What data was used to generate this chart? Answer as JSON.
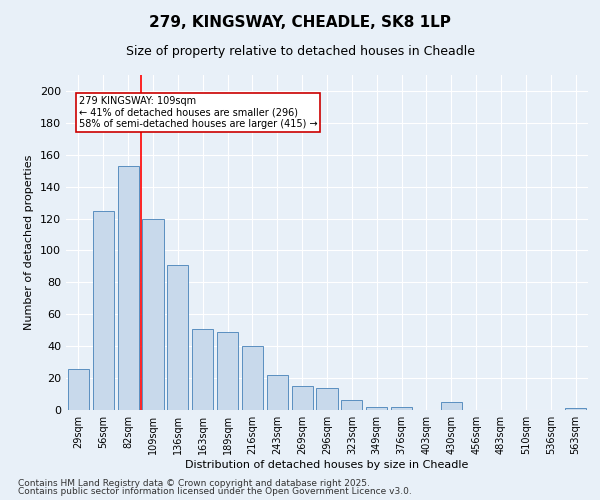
{
  "title": "279, KINGSWAY, CHEADLE, SK8 1LP",
  "subtitle": "Size of property relative to detached houses in Cheadle",
  "xlabel": "Distribution of detached houses by size in Cheadle",
  "ylabel": "Number of detached properties",
  "categories": [
    "29sqm",
    "56sqm",
    "82sqm",
    "109sqm",
    "136sqm",
    "163sqm",
    "189sqm",
    "216sqm",
    "243sqm",
    "269sqm",
    "296sqm",
    "323sqm",
    "349sqm",
    "376sqm",
    "403sqm",
    "430sqm",
    "456sqm",
    "483sqm",
    "510sqm",
    "536sqm",
    "563sqm"
  ],
  "values": [
    26,
    125,
    153,
    120,
    91,
    51,
    49,
    40,
    22,
    15,
    14,
    6,
    2,
    2,
    0,
    5,
    0,
    0,
    0,
    0,
    1
  ],
  "bar_color": "#c8d9eb",
  "bar_edge_color": "#5a8fc0",
  "red_line_index": 3,
  "annotation_text": "279 KINGSWAY: 109sqm\n← 41% of detached houses are smaller (296)\n58% of semi-detached houses are larger (415) →",
  "annotation_box_color": "#ffffff",
  "annotation_box_edge_color": "#cc0000",
  "ylim": [
    0,
    210
  ],
  "yticks": [
    0,
    20,
    40,
    60,
    80,
    100,
    120,
    140,
    160,
    180,
    200
  ],
  "footer_line1": "Contains HM Land Registry data © Crown copyright and database right 2025.",
  "footer_line2": "Contains public sector information licensed under the Open Government Licence v3.0.",
  "background_color": "#e8f0f8",
  "grid_color": "#ffffff",
  "title_fontsize": 11,
  "subtitle_fontsize": 9,
  "axis_label_fontsize": 8,
  "tick_fontsize": 7,
  "annotation_fontsize": 7,
  "footer_fontsize": 6.5
}
